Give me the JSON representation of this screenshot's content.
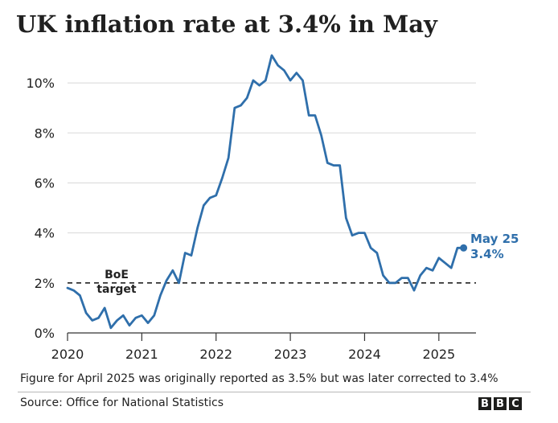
{
  "chart_data": {
    "type": "line",
    "title": "UK inflation rate at 3.4% in May",
    "subtitle": "",
    "xlabel": "",
    "ylabel": "",
    "x_ticks": [
      "2020",
      "2021",
      "2022",
      "2023",
      "2024",
      "2025"
    ],
    "y_ticks": [
      "0%",
      "2%",
      "4%",
      "6%",
      "8%",
      "10%"
    ],
    "xlim": [
      2020.0,
      2025.5
    ],
    "ylim": [
      0,
      11
    ],
    "grid": true,
    "series": [
      {
        "color": "#2f6fab",
        "points": [
          [
            "2020-01",
            1.8
          ],
          [
            "2020-02",
            1.7
          ],
          [
            "2020-03",
            1.5
          ],
          [
            "2020-04",
            0.8
          ],
          [
            "2020-05",
            0.5
          ],
          [
            "2020-06",
            0.6
          ],
          [
            "2020-07",
            1.0
          ],
          [
            "2020-08",
            0.2
          ],
          [
            "2020-09",
            0.5
          ],
          [
            "2020-10",
            0.7
          ],
          [
            "2020-11",
            0.3
          ],
          [
            "2020-12",
            0.6
          ],
          [
            "2021-01",
            0.7
          ],
          [
            "2021-02",
            0.4
          ],
          [
            "2021-03",
            0.7
          ],
          [
            "2021-04",
            1.5
          ],
          [
            "2021-05",
            2.1
          ],
          [
            "2021-06",
            2.5
          ],
          [
            "2021-07",
            2.0
          ],
          [
            "2021-08",
            3.2
          ],
          [
            "2021-09",
            3.1
          ],
          [
            "2021-10",
            4.2
          ],
          [
            "2021-11",
            5.1
          ],
          [
            "2021-12",
            5.4
          ],
          [
            "2022-01",
            5.5
          ],
          [
            "2022-02",
            6.2
          ],
          [
            "2022-03",
            7.0
          ],
          [
            "2022-04",
            9.0
          ],
          [
            "2022-05",
            9.1
          ],
          [
            "2022-06",
            9.4
          ],
          [
            "2022-07",
            10.1
          ],
          [
            "2022-08",
            9.9
          ],
          [
            "2022-09",
            10.1
          ],
          [
            "2022-10",
            11.1
          ],
          [
            "2022-11",
            10.7
          ],
          [
            "2022-12",
            10.5
          ],
          [
            "2023-01",
            10.1
          ],
          [
            "2023-02",
            10.4
          ],
          [
            "2023-03",
            10.1
          ],
          [
            "2023-04",
            8.7
          ],
          [
            "2023-05",
            8.7
          ],
          [
            "2023-06",
            7.9
          ],
          [
            "2023-07",
            6.8
          ],
          [
            "2023-08",
            6.7
          ],
          [
            "2023-09",
            6.7
          ],
          [
            "2023-10",
            4.6
          ],
          [
            "2023-11",
            3.9
          ],
          [
            "2023-12",
            4.0
          ],
          [
            "2024-01",
            4.0
          ],
          [
            "2024-02",
            3.4
          ],
          [
            "2024-03",
            3.2
          ],
          [
            "2024-04",
            2.3
          ],
          [
            "2024-05",
            2.0
          ],
          [
            "2024-06",
            2.0
          ],
          [
            "2024-07",
            2.2
          ],
          [
            "2024-08",
            2.2
          ],
          [
            "2024-09",
            1.7
          ],
          [
            "2024-10",
            2.3
          ],
          [
            "2024-11",
            2.6
          ],
          [
            "2024-12",
            2.5
          ],
          [
            "2025-01",
            3.0
          ],
          [
            "2025-02",
            2.8
          ],
          [
            "2025-03",
            2.6
          ],
          [
            "2025-04",
            3.4
          ],
          [
            "2025-05",
            3.4
          ]
        ]
      }
    ],
    "reference_line": {
      "y": 2,
      "label_line1": "BoE",
      "label_line2": "target",
      "style": "dashed",
      "color": "#222222"
    },
    "end_annotation": {
      "label_line1": "May 25",
      "label_line2": "3.4%",
      "color": "#2f6fab"
    }
  },
  "footer": {
    "note": "Figure for April 2025 was originally reported as 3.5% but was later corrected to 3.4%",
    "source": "Source: Office for National Statistics",
    "logo_letters": [
      "B",
      "B",
      "C"
    ]
  }
}
